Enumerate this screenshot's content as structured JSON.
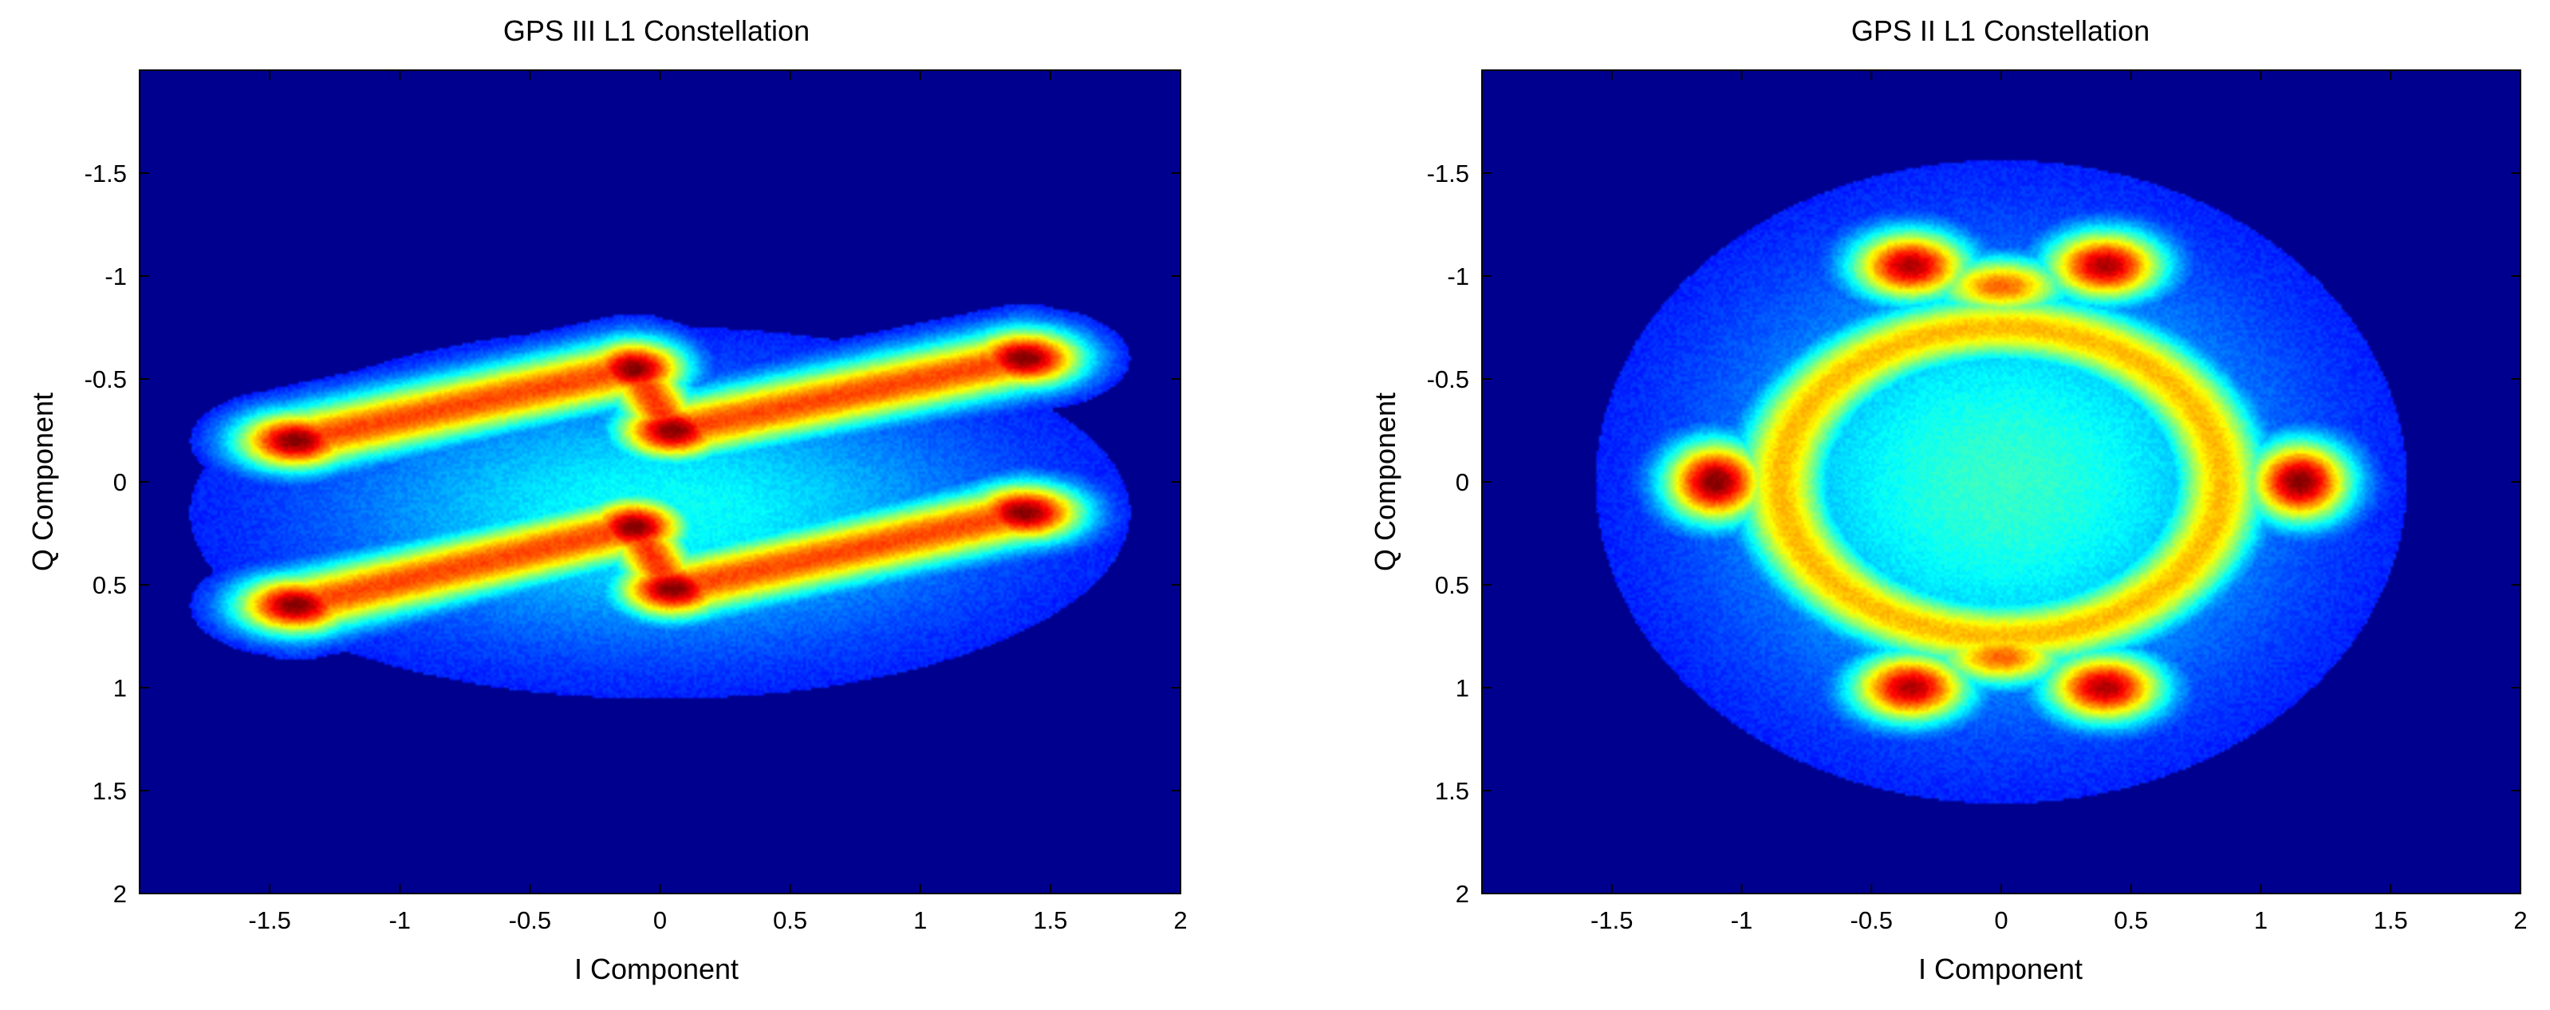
{
  "chart_data": [
    {
      "type": "heatmap",
      "title": "GPS III L1 Constellation",
      "xlabel": "I Component",
      "ylabel": "Q Component",
      "xlim": [
        -2,
        2
      ],
      "ylim": [
        -2,
        2
      ],
      "y_axis_reversed": true,
      "x_ticks": [
        "-1.5",
        "-1",
        "-0.5",
        "0",
        "0.5",
        "1",
        "1.5",
        "2"
      ],
      "x_tick_values": [
        -1.5,
        -1,
        -0.5,
        0,
        0.5,
        1,
        1.5,
        2
      ],
      "y_ticks": [
        "-1.5",
        "-1",
        "-0.5",
        "0",
        "0.5",
        "1",
        "1.5",
        "2"
      ],
      "y_tick_values": [
        -1.5,
        -1,
        -0.5,
        0,
        0.5,
        1,
        1.5,
        2
      ],
      "colormap": "jet",
      "background_color": "#00008f",
      "density_clusters": [
        {
          "i": -1.4,
          "q": -0.2,
          "sigma_i": 0.16,
          "sigma_q": 0.1,
          "weight": 1.0
        },
        {
          "i": -0.1,
          "q": -0.55,
          "sigma_i": 0.14,
          "sigma_q": 0.1,
          "weight": 1.0
        },
        {
          "i": 0.05,
          "q": -0.25,
          "sigma_i": 0.15,
          "sigma_q": 0.1,
          "weight": 1.0
        },
        {
          "i": 1.4,
          "q": -0.6,
          "sigma_i": 0.16,
          "sigma_q": 0.1,
          "weight": 1.0
        },
        {
          "i": -1.4,
          "q": 0.6,
          "sigma_i": 0.16,
          "sigma_q": 0.1,
          "weight": 1.0
        },
        {
          "i": -0.1,
          "q": 0.22,
          "sigma_i": 0.14,
          "sigma_q": 0.1,
          "weight": 1.0
        },
        {
          "i": 0.05,
          "q": 0.52,
          "sigma_i": 0.15,
          "sigma_q": 0.1,
          "weight": 1.0
        },
        {
          "i": 1.4,
          "q": 0.15,
          "sigma_i": 0.16,
          "sigma_q": 0.1,
          "weight": 1.0
        }
      ],
      "density_ridges": [
        {
          "from": [
            -1.4,
            -0.2
          ],
          "to": [
            -0.1,
            -0.55
          ],
          "sigma": 0.11,
          "weight": 0.78
        },
        {
          "from": [
            -0.1,
            -0.55
          ],
          "to": [
            0.05,
            -0.25
          ],
          "sigma": 0.1,
          "weight": 0.8
        },
        {
          "from": [
            0.05,
            -0.25
          ],
          "to": [
            1.4,
            -0.6
          ],
          "sigma": 0.11,
          "weight": 0.78
        },
        {
          "from": [
            -1.4,
            0.6
          ],
          "to": [
            -0.1,
            0.22
          ],
          "sigma": 0.11,
          "weight": 0.78
        },
        {
          "from": [
            -0.1,
            0.22
          ],
          "to": [
            0.05,
            0.52
          ],
          "sigma": 0.1,
          "weight": 0.8
        },
        {
          "from": [
            0.05,
            0.52
          ],
          "to": [
            1.4,
            0.15
          ],
          "sigma": 0.11,
          "weight": 0.78
        }
      ],
      "density_halo": {
        "i": 0,
        "q": 0.15,
        "sigma_i": 0.9,
        "sigma_q": 0.45,
        "weight": 0.3
      }
    },
    {
      "type": "heatmap",
      "title": "GPS II L1 Constellation",
      "xlabel": "I Component",
      "ylabel": "Q Component",
      "xlim": [
        -2,
        2
      ],
      "ylim": [
        -2,
        2
      ],
      "y_axis_reversed": true,
      "x_ticks": [
        "-1.5",
        "-1",
        "-0.5",
        "0",
        "0.5",
        "1",
        "1.5",
        "2"
      ],
      "x_tick_values": [
        -1.5,
        -1,
        -0.5,
        0,
        0.5,
        1,
        1.5,
        2
      ],
      "y_ticks": [
        "-1.5",
        "-1",
        "-0.5",
        "0",
        "0.5",
        "1",
        "1.5",
        "2"
      ],
      "y_tick_values": [
        -1.5,
        -1,
        -0.5,
        0,
        0.5,
        1,
        1.5,
        2
      ],
      "colormap": "jet",
      "background_color": "#00008f",
      "density_clusters": [
        {
          "i": -1.1,
          "q": 0.0,
          "sigma_i": 0.14,
          "sigma_q": 0.14,
          "weight": 1.0
        },
        {
          "i": 1.15,
          "q": 0.0,
          "sigma_i": 0.14,
          "sigma_q": 0.14,
          "weight": 1.0
        },
        {
          "i": -0.35,
          "q": -1.05,
          "sigma_i": 0.16,
          "sigma_q": 0.12,
          "weight": 0.95
        },
        {
          "i": 0.4,
          "q": -1.05,
          "sigma_i": 0.16,
          "sigma_q": 0.12,
          "weight": 0.95
        },
        {
          "i": 0.0,
          "q": -0.95,
          "sigma_i": 0.18,
          "sigma_q": 0.1,
          "weight": 0.75
        },
        {
          "i": -0.35,
          "q": 1.0,
          "sigma_i": 0.16,
          "sigma_q": 0.12,
          "weight": 0.95
        },
        {
          "i": 0.4,
          "q": 1.0,
          "sigma_i": 0.16,
          "sigma_q": 0.12,
          "weight": 0.95
        },
        {
          "i": 0.0,
          "q": 0.85,
          "sigma_i": 0.18,
          "sigma_q": 0.1,
          "weight": 0.75
        }
      ],
      "density_ring": {
        "i": 0.0,
        "q": 0.0,
        "radius_i": 0.85,
        "radius_q": 0.75,
        "sigma": 0.12,
        "weight": 0.65
      },
      "density_halo": {
        "i": 0.0,
        "q": 0.0,
        "sigma_i": 0.75,
        "sigma_q": 0.75,
        "weight": 0.35
      }
    }
  ]
}
